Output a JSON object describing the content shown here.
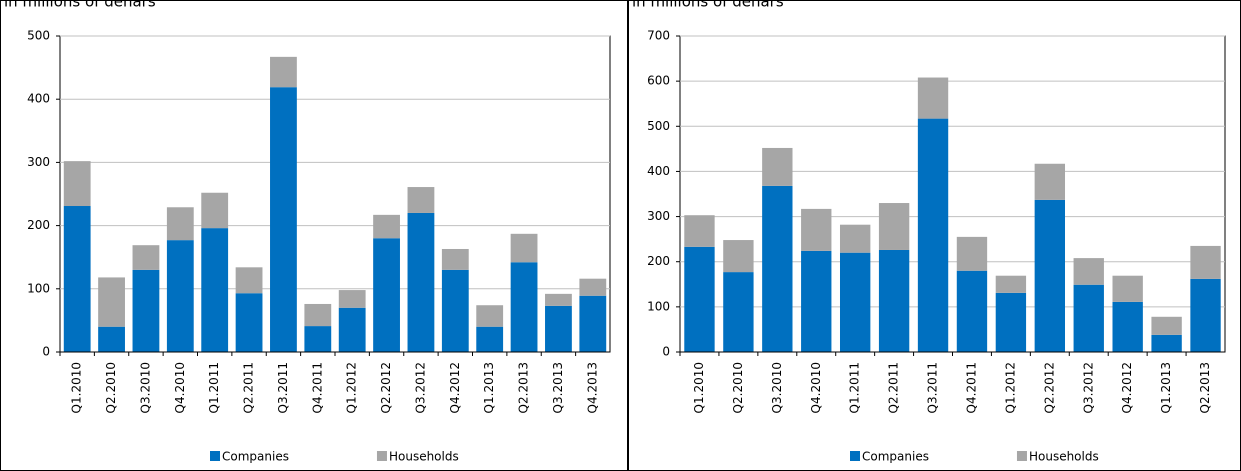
{
  "chart_data": [
    {
      "type": "bar",
      "stacked": true,
      "title": "in millions of denars",
      "categories": [
        "Q1.2010",
        "Q2.2010",
        "Q3.2010",
        "Q4.2010",
        "Q1.2011",
        "Q2.2011",
        "Q3.2011",
        "Q4.2011",
        "Q1.2012",
        "Q2.2012",
        "Q3.2012",
        "Q4.2012",
        "Q1.2013",
        "Q2.2013",
        "Q3.2013",
        "Q4.2013"
      ],
      "series": [
        {
          "name": "Companies",
          "color": "#0070c0",
          "values": [
            231,
            40,
            130,
            177,
            196,
            93,
            419,
            41,
            70,
            180,
            220,
            130,
            40,
            142,
            73,
            89
          ]
        },
        {
          "name": "Households",
          "color": "#a6a6a6",
          "values": [
            71,
            78,
            39,
            52,
            56,
            41,
            48,
            35,
            28,
            37,
            41,
            33,
            34,
            45,
            19,
            27
          ]
        }
      ],
      "ylim": [
        0,
        500
      ],
      "yticks": [
        0,
        100,
        200,
        300,
        400,
        500
      ],
      "grid": true,
      "legend": "bottom"
    },
    {
      "type": "bar",
      "stacked": true,
      "title": "in millions of denars",
      "categories": [
        "Q1.2010",
        "Q2.2010",
        "Q3.2010",
        "Q4.2010",
        "Q1.2011",
        "Q2.2011",
        "Q3.2011",
        "Q4.2011",
        "Q1.2012",
        "Q2.2012",
        "Q3.2012",
        "Q4.2012",
        "Q1.2013",
        "Q2.2013"
      ],
      "series": [
        {
          "name": "Companies",
          "color": "#0070c0",
          "values": [
            233,
            177,
            368,
            224,
            220,
            226,
            517,
            180,
            131,
            337,
            149,
            111,
            38,
            162
          ]
        },
        {
          "name": "Households",
          "color": "#a6a6a6",
          "values": [
            70,
            71,
            84,
            93,
            62,
            104,
            91,
            75,
            38,
            80,
            59,
            58,
            40,
            73
          ]
        }
      ],
      "ylim": [
        0,
        700
      ],
      "yticks": [
        0,
        100,
        200,
        300,
        400,
        500,
        600,
        700
      ],
      "grid": true,
      "legend": "bottom"
    }
  ]
}
